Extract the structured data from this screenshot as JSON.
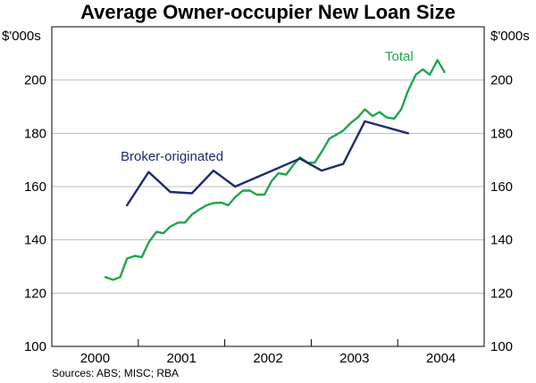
{
  "chart_data": {
    "type": "line",
    "title": "Average Owner-occupier New Loan Size",
    "y_unit_left": "$'000s",
    "y_unit_right": "$'000s",
    "ylim": [
      100,
      220
    ],
    "yticks": [
      100,
      120,
      140,
      160,
      180,
      200
    ],
    "xlim": [
      1999.5,
      2004.5
    ],
    "xtick_labels": [
      "2000",
      "2001",
      "2002",
      "2003",
      "2004"
    ],
    "xtick_centers": [
      2000,
      2001,
      2002,
      2003,
      2004
    ],
    "grid": true,
    "series": [
      {
        "name": "Total",
        "color": "#1fa64a",
        "x": [
          2000.12,
          2000.21,
          2000.29,
          2000.37,
          2000.46,
          2000.54,
          2000.62,
          2000.71,
          2000.79,
          2000.87,
          2000.96,
          2001.04,
          2001.12,
          2001.21,
          2001.29,
          2001.37,
          2001.46,
          2001.54,
          2001.62,
          2001.71,
          2001.79,
          2001.87,
          2001.96,
          2002.04,
          2002.12,
          2002.21,
          2002.29,
          2002.37,
          2002.46,
          2002.54,
          2002.62,
          2002.71,
          2002.79,
          2002.87,
          2002.96,
          2003.04,
          2003.12,
          2003.21,
          2003.29,
          2003.37,
          2003.46,
          2003.54,
          2003.62,
          2003.71,
          2003.79,
          2003.87,
          2003.96,
          2004.04
        ],
        "values": [
          126,
          125,
          126,
          133,
          134,
          133.5,
          139,
          143,
          142.5,
          145,
          146.5,
          146.5,
          149.5,
          151.5,
          153,
          153.8,
          154,
          153,
          156,
          158.5,
          158.5,
          157,
          157,
          162,
          165,
          164.5,
          168,
          171,
          169,
          169,
          173,
          178,
          179.5,
          181,
          184,
          186,
          189,
          186.5,
          188,
          186,
          185.5,
          189,
          196,
          202,
          204,
          202,
          207.5,
          203
        ]
      },
      {
        "name": "Broker-originated",
        "color": "#1f2a6e",
        "x": [
          2000.37,
          2000.62,
          2000.87,
          2001.12,
          2001.37,
          2001.62,
          2002.37,
          2002.62,
          2002.87,
          2003.12,
          2003.62
        ],
        "values": [
          153,
          165.5,
          158,
          157.5,
          166,
          160,
          170.5,
          166,
          168.5,
          184.5,
          180
        ]
      }
    ],
    "annotations": [
      {
        "text": "Total",
        "color": "#1fa64a"
      },
      {
        "text": "Broker-originated",
        "color": "#1f2a6e"
      }
    ],
    "source": "Sources: ABS; MISC; RBA"
  }
}
